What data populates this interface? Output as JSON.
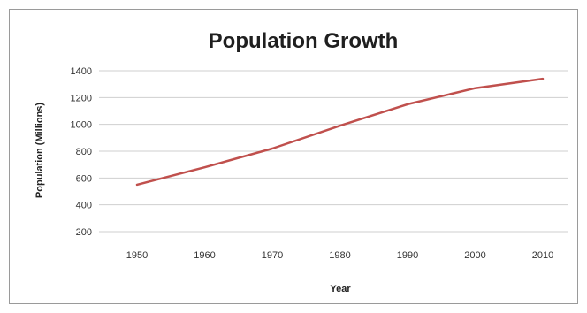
{
  "chart_data": {
    "type": "line",
    "title": "Population Growth",
    "xlabel": "Year",
    "ylabel": "Population (Millions)",
    "x": [
      1950,
      1960,
      1970,
      1980,
      1990,
      2000,
      2010
    ],
    "x_ticks": [
      "1950",
      "1960",
      "1970",
      "1980",
      "1990",
      "2000",
      "2010"
    ],
    "ylim": [
      200,
      1400
    ],
    "y_ticks": [
      "200",
      "400",
      "600",
      "800",
      "1000",
      "1200",
      "1400"
    ],
    "series": [
      {
        "values": [
          550,
          680,
          820,
          990,
          1150,
          1270,
          1340
        ],
        "color": "#c0504d"
      }
    ],
    "grid": "horizontal",
    "legend": "none"
  }
}
